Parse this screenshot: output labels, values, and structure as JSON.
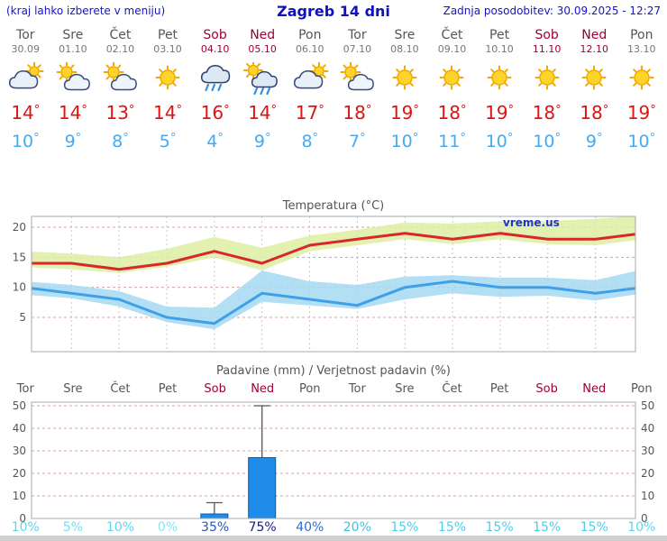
{
  "colors": {
    "header_text": "#1414cc",
    "weekend_label": "#a00030",
    "temp_max_text": "#e01212",
    "temp_min_text": "#46aaf0",
    "chart_title_text": "#555555"
  },
  "header": {
    "hint": "(kraj lahko izberete v meniju)",
    "title": "Zagreb 14 dni",
    "last_update": "Zadnja posodobitev: 30.09.2025 - 12:27"
  },
  "units": {
    "degree": "°"
  },
  "days": [
    {
      "name": "Tor",
      "date": "30.09",
      "weekend": false,
      "icon": "cloudy",
      "tmax": 14,
      "tmin": 10
    },
    {
      "name": "Sre",
      "date": "01.10",
      "weekend": false,
      "icon": "partly-sunny",
      "tmax": 14,
      "tmin": 9
    },
    {
      "name": "Čet",
      "date": "02.10",
      "weekend": false,
      "icon": "partly-sunny",
      "tmax": 13,
      "tmin": 8
    },
    {
      "name": "Pet",
      "date": "03.10",
      "weekend": false,
      "icon": "sunny",
      "tmax": 14,
      "tmin": 5
    },
    {
      "name": "Sob",
      "date": "04.10",
      "weekend": true,
      "icon": "rain",
      "tmax": 16,
      "tmin": 4
    },
    {
      "name": "Ned",
      "date": "05.10",
      "weekend": true,
      "icon": "rain-sun",
      "tmax": 14,
      "tmin": 9
    },
    {
      "name": "Pon",
      "date": "06.10",
      "weekend": false,
      "icon": "cloudy",
      "tmax": 17,
      "tmin": 8
    },
    {
      "name": "Tor",
      "date": "07.10",
      "weekend": false,
      "icon": "partly-sunny",
      "tmax": 18,
      "tmin": 7
    },
    {
      "name": "Sre",
      "date": "08.10",
      "weekend": false,
      "icon": "sunny",
      "tmax": 19,
      "tmin": 10
    },
    {
      "name": "Čet",
      "date": "09.10",
      "weekend": false,
      "icon": "sunny",
      "tmax": 18,
      "tmin": 11
    },
    {
      "name": "Pet",
      "date": "10.10",
      "weekend": false,
      "icon": "sunny",
      "tmax": 19,
      "tmin": 10
    },
    {
      "name": "Sob",
      "date": "11.10",
      "weekend": true,
      "icon": "sunny",
      "tmax": 18,
      "tmin": 10
    },
    {
      "name": "Ned",
      "date": "12.10",
      "weekend": true,
      "icon": "sunny",
      "tmax": 18,
      "tmin": 9
    },
    {
      "name": "Pon",
      "date": "13.10",
      "weekend": false,
      "icon": "sunny",
      "tmax": 19,
      "tmin": 10
    }
  ],
  "chart_data": [
    {
      "type": "line",
      "title": "Temperatura (°C)",
      "watermark": "vreme.us",
      "categories": [
        "Tor",
        "Sre",
        "Čet",
        "Pet",
        "Sob",
        "Ned",
        "Pon",
        "Tor",
        "Sre",
        "Čet",
        "Pet",
        "Sob",
        "Ned",
        "Pon"
      ],
      "yticks": [
        5,
        10,
        15,
        20
      ],
      "ylim": [
        -1,
        22
      ],
      "grid": true,
      "legend": false,
      "series": [
        {
          "name": "max temperature",
          "color": "#d8262c",
          "band_color": "#ddefa2",
          "values": [
            14,
            14,
            13,
            14,
            16,
            14,
            17,
            18,
            19,
            18,
            19,
            18,
            18,
            19
          ],
          "band_high": [
            16,
            15.6,
            15,
            16.4,
            18.4,
            16.6,
            18.6,
            19.6,
            20.8,
            20.6,
            21,
            21,
            21.4,
            22
          ],
          "band_low": [
            13.4,
            13,
            12.4,
            13.4,
            15,
            12.8,
            16,
            17,
            18,
            17.2,
            18,
            17.2,
            17,
            18
          ]
        },
        {
          "name": "min temperature",
          "color": "#3fa0e8",
          "band_color": "#a6d9f3",
          "values": [
            10,
            9,
            8,
            5,
            4,
            9,
            8,
            7,
            10,
            11,
            10,
            10,
            9,
            10
          ],
          "band_high": [
            11,
            10.4,
            9.4,
            6.8,
            6.6,
            12.8,
            11,
            10.4,
            11.8,
            12,
            11.6,
            11.6,
            11.2,
            13
          ],
          "band_low": [
            8.8,
            8.2,
            6.8,
            4.2,
            3,
            7.6,
            7,
            6.4,
            8,
            9,
            8.4,
            8.6,
            7.8,
            9
          ]
        }
      ]
    },
    {
      "type": "bar",
      "title": "Padavine (mm) / Verjetnost padavin (%)",
      "categories": [
        {
          "label": "Tor",
          "weekend": false
        },
        {
          "label": "Sre",
          "weekend": false
        },
        {
          "label": "Čet",
          "weekend": false
        },
        {
          "label": "Pet",
          "weekend": false
        },
        {
          "label": "Sob",
          "weekend": true
        },
        {
          "label": "Ned",
          "weekend": true
        },
        {
          "label": "Pon",
          "weekend": false
        },
        {
          "label": "Tor",
          "weekend": false
        },
        {
          "label": "Sre",
          "weekend": false
        },
        {
          "label": "Čet",
          "weekend": false
        },
        {
          "label": "Pet",
          "weekend": false
        },
        {
          "label": "Sob",
          "weekend": true
        },
        {
          "label": "Ned",
          "weekend": true
        },
        {
          "label": "Pon",
          "weekend": false
        }
      ],
      "values": [
        0,
        0,
        0,
        0,
        2,
        27,
        0,
        0,
        0,
        0,
        0,
        0,
        0,
        0
      ],
      "whiskers": [
        0,
        0,
        0,
        0,
        7,
        50,
        0,
        0,
        0,
        0,
        0,
        0,
        0,
        0
      ],
      "bar_color": "#1e8ce8",
      "bar_border_color": "#0c5aa8",
      "yticks": [
        0,
        10,
        20,
        30,
        40,
        50
      ],
      "ylim": [
        0,
        52
      ],
      "probabilities": [
        {
          "label": "10%",
          "color": "#5bd6ee"
        },
        {
          "label": "5%",
          "color": "#6fdff2"
        },
        {
          "label": "10%",
          "color": "#5bd6ee"
        },
        {
          "label": "0%",
          "color": "#82e6f5"
        },
        {
          "label": "35%",
          "color": "#2b55bb"
        },
        {
          "label": "75%",
          "color": "#16207c"
        },
        {
          "label": "40%",
          "color": "#2e6fd2"
        },
        {
          "label": "20%",
          "color": "#3ac4e6"
        },
        {
          "label": "15%",
          "color": "#4acfeb"
        },
        {
          "label": "15%",
          "color": "#4acfeb"
        },
        {
          "label": "15%",
          "color": "#4acfeb"
        },
        {
          "label": "15%",
          "color": "#4acfeb"
        },
        {
          "label": "15%",
          "color": "#4acfeb"
        },
        {
          "label": "10%",
          "color": "#5bd6ee"
        }
      ]
    }
  ]
}
